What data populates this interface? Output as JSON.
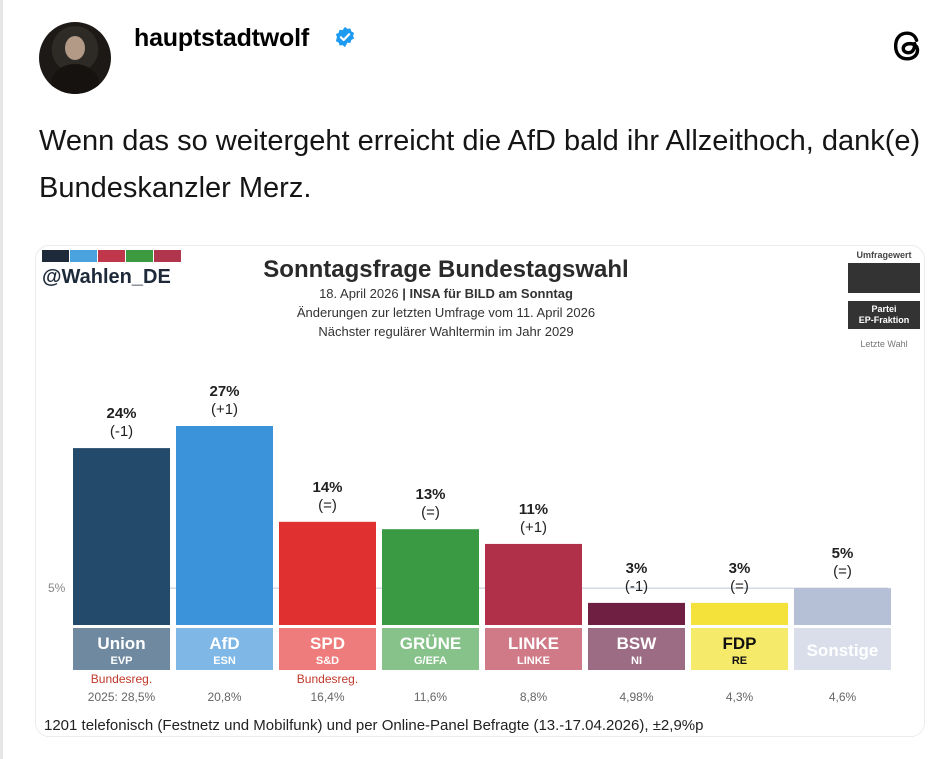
{
  "post": {
    "username": "hauptstadtwolf",
    "text": "Wenn das so weitergeht erreicht die AfD bald ihr Allzeithoch, dank(e) Bundeskanzler Merz."
  },
  "icons": {
    "verified": "verified-badge-icon",
    "app": "threads-logo-icon"
  },
  "chart_header": {
    "handle": "@Wahlen_DE",
    "title": "Sonntagsfrage Bundestagswahl",
    "line1_date": "18. April 2026",
    "line1_source": "INSA für BILD am Sonntag",
    "line2": "Änderungen zur letzten Umfrage vom 11. April 2026",
    "line3": "Nächster regulärer Wahltermin im Jahr 2029",
    "brand_colors": [
      "#1e2a3a",
      "#4aa3df",
      "#c0364a",
      "#3c9a40",
      "#b0364d"
    ]
  },
  "legend": {
    "top": "Umfragewert",
    "party": "Partei",
    "fraction": "EP-Fraktion",
    "last": "Letzte Wahl"
  },
  "chart_data": {
    "type": "bar",
    "title": "Sonntagsfrage Bundestagswahl",
    "unit": "%",
    "threshold_label": "5%",
    "threshold": 5,
    "ylim": [
      0,
      27
    ],
    "categories": [
      "Union",
      "AfD",
      "SPD",
      "GRÜNE",
      "LINKE",
      "BSW",
      "FDP",
      "Sonstige"
    ],
    "ep_fraction": [
      "EVP",
      "ESN",
      "S&D",
      "G/EFA",
      "LINKE",
      "NI",
      "RE",
      ""
    ],
    "values": [
      24,
      27,
      14,
      13,
      11,
      3,
      3,
      5
    ],
    "value_labels": [
      "24%",
      "27%",
      "14%",
      "13%",
      "11%",
      "3%",
      "3%",
      "5%"
    ],
    "changes": [
      "(-1)",
      "(+1)",
      "(=)",
      "(=)",
      "(+1)",
      "(-1)",
      "(=)",
      "(=)"
    ],
    "colors": [
      "#244a6b",
      "#3b94d9",
      "#e03030",
      "#3a9a44",
      "#b0304a",
      "#6e1f42",
      "#f4e23a",
      "#b5bfd6"
    ],
    "label_colors": [
      "#6f8aa0",
      "#7fb7e6",
      "#ee7c7c",
      "#86c28a",
      "#d07a88",
      "#9c6c84",
      "#f5ea6a",
      "#d9deea"
    ],
    "label_text_colors": [
      "#ffffff",
      "#ffffff",
      "#ffffff",
      "#ffffff",
      "#ffffff",
      "#ffffff",
      "#111111",
      "#ffffff"
    ],
    "gov_note": [
      "Bundesreg.",
      "",
      "Bundesreg.",
      "",
      "",
      "",
      "",
      ""
    ],
    "last_election": [
      "2025: 28,5%",
      "20,8%",
      "16,4%",
      "11,6%",
      "8,8%",
      "4,98%",
      "4,3%",
      "4,6%"
    ]
  },
  "footer": "1201 telefonisch (Festnetz und Mobilfunk) und per Online-Panel Befragte (13.-17.04.2026), ±2,9%p"
}
